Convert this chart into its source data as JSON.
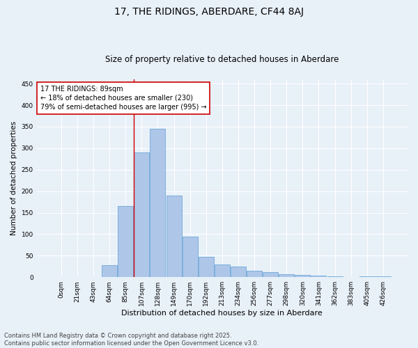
{
  "title": "17, THE RIDINGS, ABERDARE, CF44 8AJ",
  "subtitle": "Size of property relative to detached houses in Aberdare",
  "xlabel": "Distribution of detached houses by size in Aberdare",
  "ylabel": "Number of detached properties",
  "bar_labels": [
    "0sqm",
    "21sqm",
    "43sqm",
    "64sqm",
    "85sqm",
    "107sqm",
    "128sqm",
    "149sqm",
    "170sqm",
    "192sqm",
    "213sqm",
    "234sqm",
    "256sqm",
    "277sqm",
    "298sqm",
    "320sqm",
    "341sqm",
    "362sqm",
    "383sqm",
    "405sqm",
    "426sqm"
  ],
  "bar_values": [
    0,
    0,
    0,
    28,
    165,
    290,
    345,
    190,
    95,
    48,
    30,
    25,
    15,
    12,
    7,
    5,
    3,
    2,
    0,
    2,
    2
  ],
  "bar_color": "#aec6e8",
  "bar_edge_color": "#5a9fd4",
  "background_color": "#e8f0f8",
  "grid_color": "#ffffff",
  "annotation_text": "17 THE RIDINGS: 89sqm\n← 18% of detached houses are smaller (230)\n79% of semi-detached houses are larger (995) →",
  "annotation_box_color": "#ffffff",
  "annotation_box_edge_color": "#cc0000",
  "vline_color": "#cc0000",
  "ylim": [
    0,
    460
  ],
  "yticks": [
    0,
    50,
    100,
    150,
    200,
    250,
    300,
    350,
    400,
    450
  ],
  "footnote": "Contains HM Land Registry data © Crown copyright and database right 2025.\nContains public sector information licensed under the Open Government Licence v3.0.",
  "title_fontsize": 10,
  "subtitle_fontsize": 8.5,
  "xlabel_fontsize": 8,
  "ylabel_fontsize": 7.5,
  "tick_fontsize": 6.5,
  "annotation_fontsize": 7,
  "footnote_fontsize": 6
}
